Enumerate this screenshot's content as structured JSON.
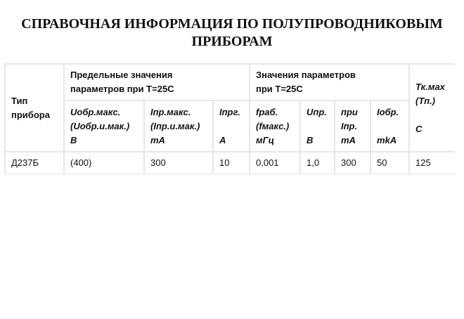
{
  "title_line1": "СПРАВОЧНАЯ ИНФОРМАЦИЯ ПО ПОЛУПРОВОДНИКОВЫМ",
  "title_line2": "ПРИБОРАМ",
  "table": {
    "type_header": [
      "Тип",
      "прибора"
    ],
    "group1": [
      "Предельные значения",
      "параметров при T=25C"
    ],
    "group2": [
      "Значения параметров",
      "при T=25C"
    ],
    "tk_header": [
      "Тк.мах",
      "(Тп.)",
      "",
      "С"
    ],
    "sub_headers": [
      [
        "Uобр.макс.",
        "(Uобр.и.мак.)",
        "В"
      ],
      [
        "Iпр.макс.",
        "(Iпр.и.мак.)",
        "mA"
      ],
      [
        "Iпрг.",
        "",
        "A"
      ],
      [
        "fраб.",
        "(fмакс.)",
        "мГц"
      ],
      [
        "Uпр.",
        "",
        "В"
      ],
      [
        "при",
        "Iпр.",
        "mA"
      ],
      [
        "Iобр.",
        "",
        "mkA"
      ]
    ],
    "rows": [
      [
        "Д237Б",
        "(400)",
        "300",
        "10",
        "0,001",
        "1,0",
        "300",
        "50",
        "125"
      ]
    ]
  }
}
